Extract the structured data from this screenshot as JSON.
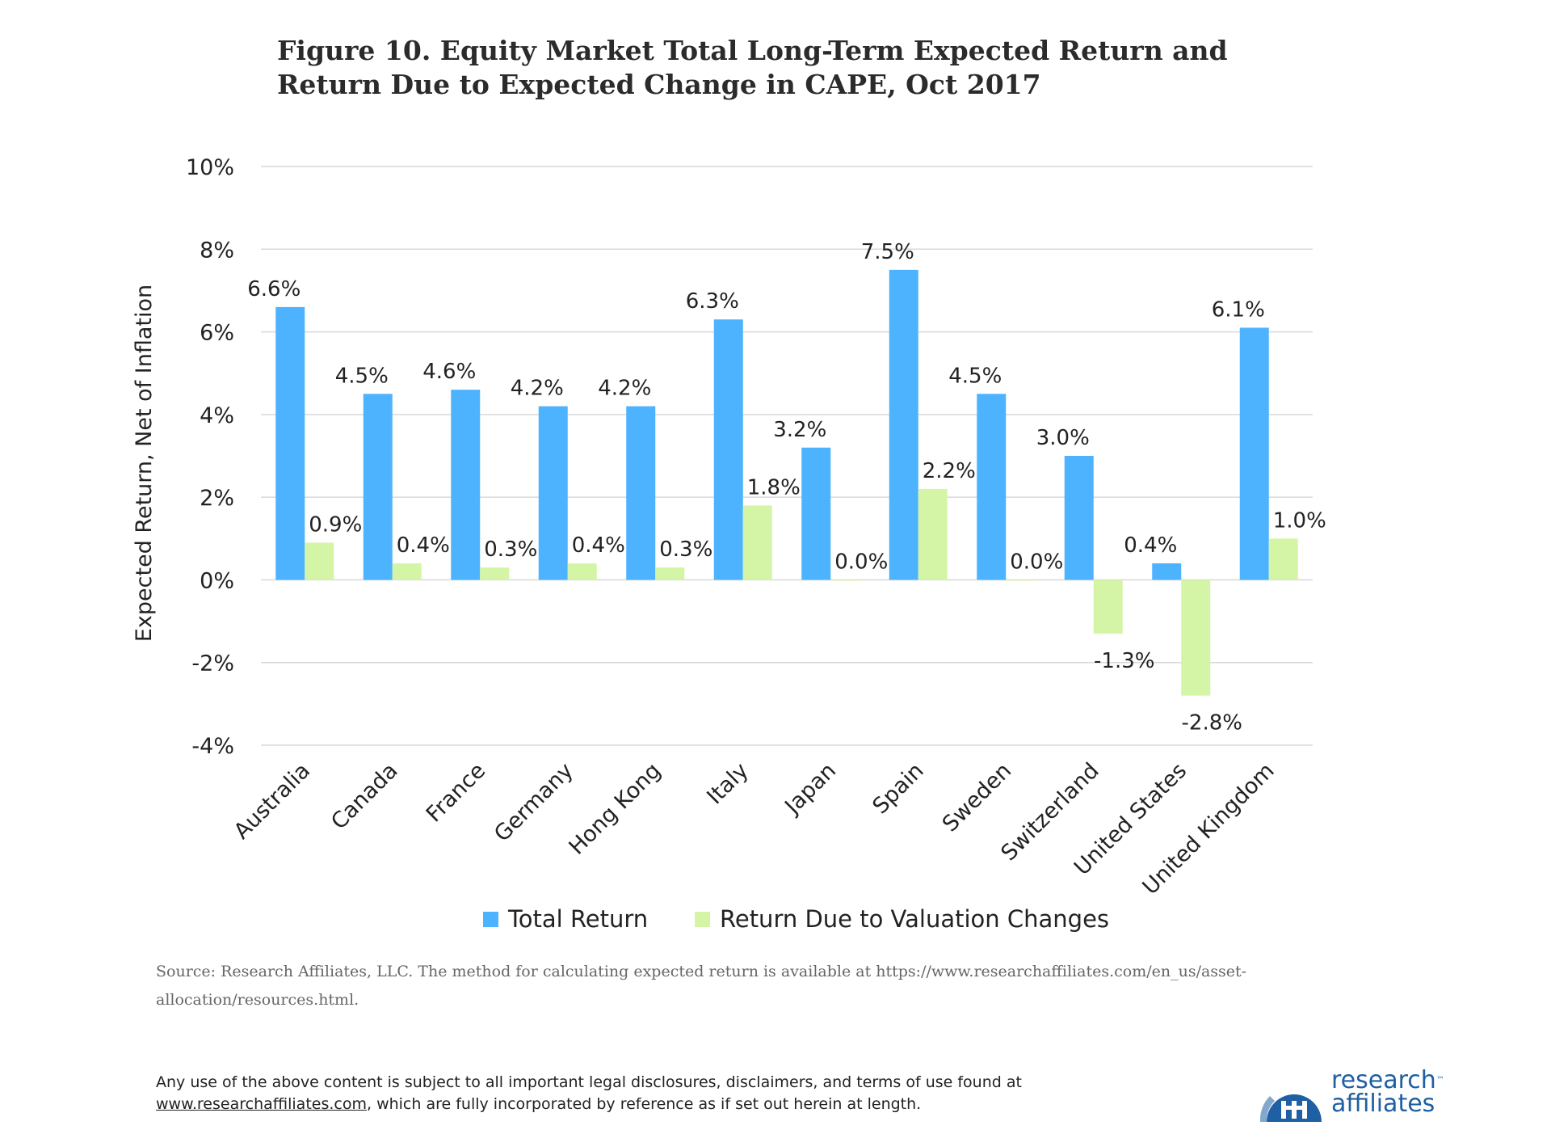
{
  "header": {
    "title_line1": "Figure 10. Equity Market Total Long-Term Expected Return and",
    "title_line2": "Return Due to Expected Change in CAPE, Oct 2017"
  },
  "chart_data": {
    "type": "bar",
    "ylabel": "Expected Return, Net of Inflation",
    "ylim": [
      -4,
      10
    ],
    "yticks": [
      10,
      8,
      6,
      4,
      2,
      0,
      -2,
      -4
    ],
    "ytick_labels": [
      "10%",
      "8%",
      "6%",
      "4%",
      "2%",
      "0%",
      "-2%",
      "-4%"
    ],
    "grid": true,
    "legend_position": "bottom",
    "categories": [
      "Australia",
      "Canada",
      "France",
      "Germany",
      "Hong Kong",
      "Italy",
      "Japan",
      "Spain",
      "Sweden",
      "Switzerland",
      "United States",
      "United Kingdom"
    ],
    "series": [
      {
        "name": "Total Return",
        "color": "#4db3ff",
        "values": [
          6.6,
          4.5,
          4.6,
          4.2,
          4.2,
          6.3,
          3.2,
          7.5,
          4.5,
          3.0,
          0.4,
          6.1
        ],
        "labels": [
          "6.6%",
          "4.5%",
          "4.6%",
          "4.2%",
          "4.2%",
          "6.3%",
          "3.2%",
          "7.5%",
          "4.5%",
          "3.0%",
          "0.4%",
          "6.1%"
        ]
      },
      {
        "name": "Return Due to Valuation Changes",
        "color": "#d5f5a6",
        "values": [
          0.9,
          0.4,
          0.3,
          0.4,
          0.3,
          1.8,
          0.0,
          2.2,
          0.0,
          -1.3,
          -2.8,
          1.0
        ],
        "labels": [
          "0.9%",
          "0.4%",
          "0.3%",
          "0.4%",
          "0.3%",
          "1.8%",
          "0.0%",
          "2.2%",
          "0.0%",
          "-1.3%",
          "-2.8%",
          "1.0%"
        ]
      }
    ]
  },
  "footer": {
    "source_line1": "Source:  Research Affiliates, LLC. The method for calculating expected return is available at https://www.researchaffiliates.com/en_us/asset-",
    "source_line2": "allocation/resources.html.",
    "disclaimer_line1": "Any use of the above content is subject to all important legal disclosures, disclaimers, and terms of use found at",
    "disclaimer_link": "www.researchaffiliates.com",
    "disclaimer_line2_rest": ", which are fully incorporated by reference as if set out herein at length."
  },
  "logo": {
    "line1": "research",
    "tm": "™",
    "line2": "affiliates",
    "color": "#1f5fa3"
  }
}
